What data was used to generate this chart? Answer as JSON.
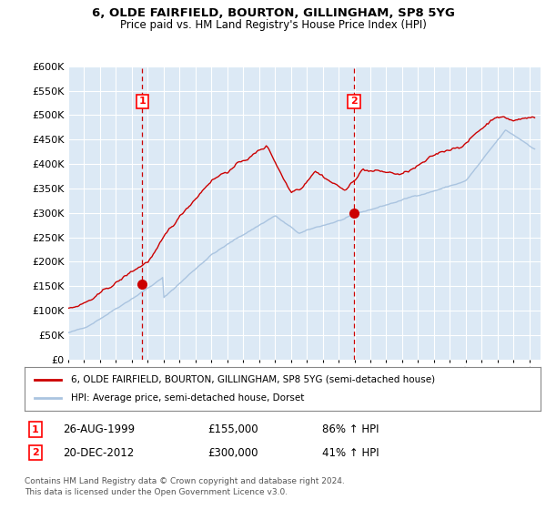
{
  "title1": "6, OLDE FAIRFIELD, BOURTON, GILLINGHAM, SP8 5YG",
  "title2": "Price paid vs. HM Land Registry's House Price Index (HPI)",
  "ylim": [
    0,
    600000
  ],
  "yticks": [
    0,
    50000,
    100000,
    150000,
    200000,
    250000,
    300000,
    350000,
    400000,
    450000,
    500000,
    550000,
    600000
  ],
  "sale1_date": 1999.65,
  "sale1_price": 155000,
  "sale2_date": 2012.97,
  "sale2_price": 300000,
  "legend_line1": "6, OLDE FAIRFIELD, BOURTON, GILLINGHAM, SP8 5YG (semi-detached house)",
  "legend_line2": "HPI: Average price, semi-detached house, Dorset",
  "note1_label": "1",
  "note1_date": "26-AUG-1999",
  "note1_price": "£155,000",
  "note1_hpi": "86% ↑ HPI",
  "note2_label": "2",
  "note2_date": "20-DEC-2012",
  "note2_price": "£300,000",
  "note2_hpi": "41% ↑ HPI",
  "footer": "Contains HM Land Registry data © Crown copyright and database right 2024.\nThis data is licensed under the Open Government Licence v3.0.",
  "hpi_color": "#aac4e0",
  "price_color": "#cc0000",
  "vline_color": "#cc0000",
  "marker_color": "#cc0000",
  "plot_bg": "#dce9f5"
}
